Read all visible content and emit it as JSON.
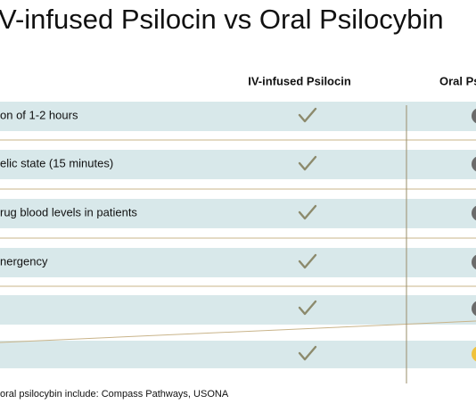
{
  "header": {
    "title": "V-infused Psilocin vs Oral Psilocybin"
  },
  "table": {
    "columns": [
      "IV-infused Psilocin",
      "Oral Ps"
    ],
    "rows": [
      "on of 1-2 hours",
      "elic state (15 minutes)",
      "rug blood levels in patients",
      "nergency"
    ]
  },
  "footnote": "oral psilocybin include: Compass Pathways, USONA"
}
